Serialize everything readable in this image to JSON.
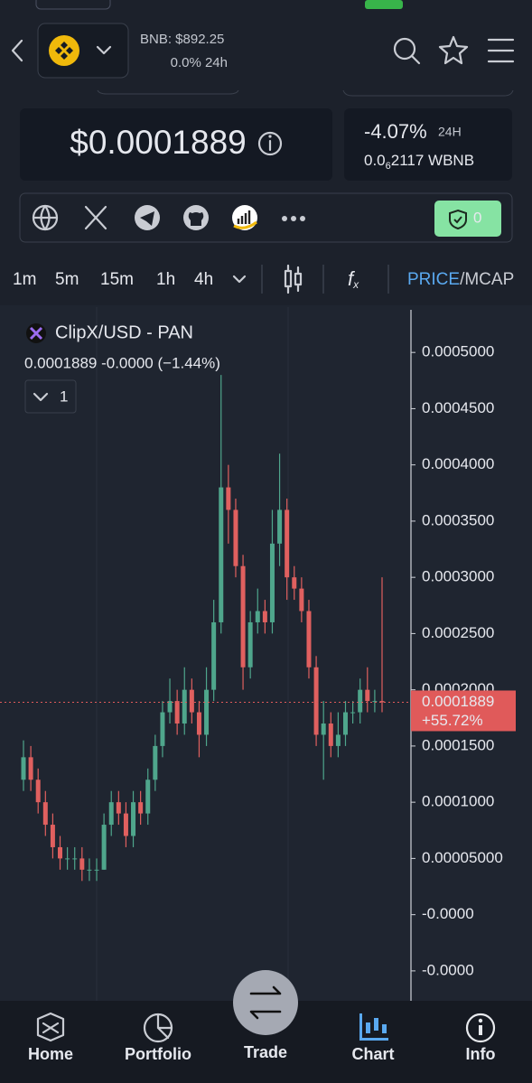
{
  "header": {
    "pair_price": "BNB: $892.25",
    "pair_change": "0.0% 24h"
  },
  "price_card": {
    "price": "$0.0001889",
    "change": "-4.07%",
    "change_period": "24H",
    "wbnb": {
      "lead": "0.0",
      "zeros": "6",
      "rest": "2117 WBNB"
    }
  },
  "links": {
    "badge": "0"
  },
  "toolbar": {
    "timeframes": [
      "1m",
      "5m",
      "15m",
      "1h",
      "4h"
    ],
    "selected": "4h",
    "price_toggle": "PRICE",
    "mcap_toggle": "/MCAP"
  },
  "chart_data": {
    "type": "candlestick",
    "title": "ClipX/USD - PAN",
    "ohlc_label": "0.0001889  -0.0000 (−1.44%)",
    "interval_count": "1",
    "up_color": "#4fa68c",
    "down_color": "#e0605f",
    "open": [
      0.00012,
      0.00014,
      0.00012,
      0.0001,
      8e-05,
      6e-05,
      5e-05,
      5e-05,
      5e-05,
      4e-05,
      4e-05,
      4e-05,
      8e-05,
      0.0001,
      9e-05,
      7e-05,
      0.0001,
      9e-05,
      0.00012,
      0.00015,
      0.00018,
      0.00019,
      0.00017,
      0.0002,
      0.00018,
      0.00016,
      0.0002,
      0.00026,
      0.00038,
      0.00036,
      0.00031,
      0.00022,
      0.00026,
      0.00027,
      0.00026,
      0.00033,
      0.00036,
      0.0003,
      0.00029,
      0.00027,
      0.00022,
      0.00016,
      0.00017,
      0.00015,
      0.00016,
      0.00018,
      0.00018,
      0.0002,
      0.00019,
      0.00019
    ],
    "high": [
      0.000155,
      0.00015,
      0.00013,
      0.00011,
      9e-05,
      7e-05,
      6e-05,
      6e-05,
      6e-05,
      5e-05,
      5e-05,
      9e-05,
      0.00011,
      0.00011,
      0.0001,
      0.00011,
      0.00011,
      0.00013,
      0.00016,
      0.00019,
      0.00021,
      0.0002,
      0.00022,
      0.00021,
      0.00019,
      0.00022,
      0.00028,
      0.00048,
      0.0004,
      0.00037,
      0.00032,
      0.00027,
      0.00029,
      0.00028,
      0.00036,
      0.00041,
      0.00037,
      0.00031,
      0.0003,
      0.00028,
      0.00023,
      0.00019,
      0.00018,
      0.00018,
      0.00019,
      0.00019,
      0.00021,
      0.00022,
      0.0002,
      0.0003
    ],
    "low": [
      0.00011,
      0.00011,
      9e-05,
      7e-05,
      5e-05,
      4e-05,
      4e-05,
      4e-05,
      3e-05,
      3e-05,
      3e-05,
      4e-05,
      7e-05,
      8e-05,
      6e-05,
      6e-05,
      8e-05,
      8e-05,
      0.00011,
      0.00014,
      0.00017,
      0.00016,
      0.00016,
      0.00017,
      0.00014,
      0.00015,
      0.00019,
      0.00025,
      0.00033,
      0.0003,
      0.0002,
      0.00021,
      0.00025,
      0.00025,
      0.00025,
      0.00031,
      0.00028,
      0.00028,
      0.00026,
      0.00021,
      0.00015,
      0.00012,
      0.00014,
      0.00014,
      0.00015,
      0.00017,
      0.00017,
      0.00018,
      0.00018,
      0.00018
    ],
    "close": [
      0.00014,
      0.00012,
      0.0001,
      8e-05,
      6e-05,
      5e-05,
      5e-05,
      5e-05,
      4e-05,
      4e-05,
      4e-05,
      8e-05,
      0.0001,
      9e-05,
      7e-05,
      0.0001,
      9e-05,
      0.00012,
      0.00015,
      0.00018,
      0.00019,
      0.00017,
      0.0002,
      0.00018,
      0.00016,
      0.0002,
      0.00026,
      0.00038,
      0.00036,
      0.00031,
      0.00022,
      0.00026,
      0.00027,
      0.00026,
      0.00033,
      0.00036,
      0.0003,
      0.00029,
      0.00027,
      0.00022,
      0.00016,
      0.00017,
      0.00015,
      0.00016,
      0.00018,
      0.00018,
      0.0002,
      0.00019,
      0.00019,
      0.0001889
    ],
    "last_price": 0.0001889,
    "last_price_color": "#e05a5a",
    "last_change_label": "+55.72%",
    "ylim": [
      -7.66e-05,
      0.0005363
    ],
    "yticks": [
      {
        "value": 0.0005,
        "label": "0.0005000"
      },
      {
        "value": 0.00045,
        "label": "0.0004500"
      },
      {
        "value": 0.0004,
        "label": "0.0004000"
      },
      {
        "value": 0.00035,
        "label": "0.0003500"
      },
      {
        "value": 0.0003,
        "label": "0.0003000"
      },
      {
        "value": 0.00025,
        "label": "0.0002500"
      },
      {
        "value": 0.0002,
        "label": "0.0002000"
      },
      {
        "value": 0.00015,
        "label": "0.0001500"
      },
      {
        "value": 0.0001,
        "label": "0.0001000"
      },
      {
        "value": 5e-05,
        "label": "0.00005000"
      },
      {
        "value": 0,
        "label": "-0.0000"
      },
      {
        "value": -5e-05,
        "label": "-0.0000"
      }
    ]
  },
  "nav": {
    "items": [
      "Home",
      "Portfolio",
      "Trade",
      "Chart",
      "Info"
    ],
    "selected": "Chart"
  }
}
